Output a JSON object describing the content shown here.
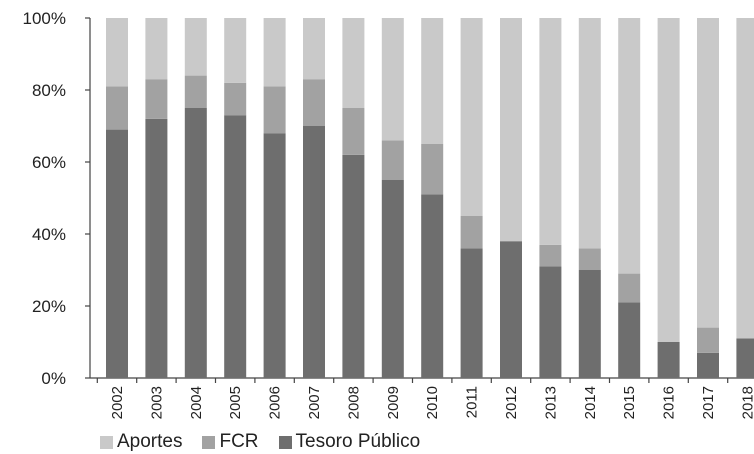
{
  "chart_data": {
    "type": "bar",
    "stacked": true,
    "categories": [
      "2002",
      "2003",
      "2004",
      "2005",
      "2006",
      "2007",
      "2008",
      "2009",
      "2010",
      "2011",
      "2012",
      "2013",
      "2014",
      "2015",
      "2016",
      "2017",
      "2018"
    ],
    "series": [
      {
        "name": "Tesoro Público",
        "color": "#6e6e6e",
        "values": [
          69,
          72,
          75,
          73,
          68,
          70,
          62,
          55,
          51,
          36,
          38,
          31,
          30,
          21,
          10,
          7,
          11
        ]
      },
      {
        "name": "FCR",
        "color": "#a2a2a2",
        "values": [
          12,
          11,
          9,
          9,
          13,
          13,
          13,
          11,
          14,
          9,
          0,
          6,
          6,
          8,
          0,
          7,
          0
        ]
      },
      {
        "name": "Aportes",
        "color": "#c9c9c9",
        "values": [
          19,
          17,
          16,
          18,
          19,
          17,
          25,
          34,
          35,
          55,
          62,
          63,
          64,
          71,
          90,
          86,
          89
        ]
      }
    ],
    "y_tick_labels": [
      "0%",
      "20%",
      "40%",
      "60%",
      "80%",
      "100%"
    ],
    "y_ticks": [
      0,
      20,
      40,
      60,
      80,
      100
    ],
    "ylim": [
      0,
      100
    ],
    "legend_order": [
      "Aportes",
      "FCR",
      "Tesoro Público"
    ],
    "legend_position": "bottom",
    "grid": false
  }
}
